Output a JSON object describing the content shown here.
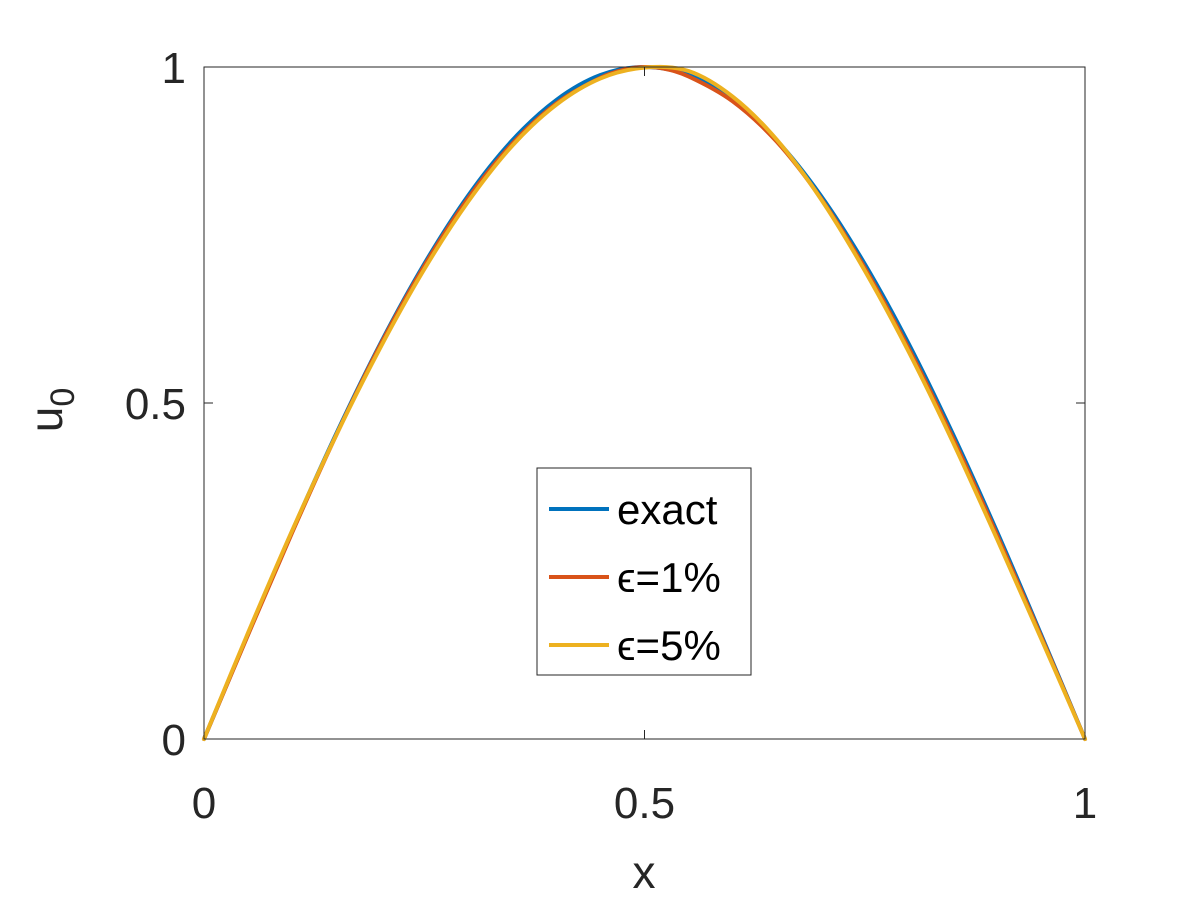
{
  "chart_data": {
    "type": "line",
    "xlabel": "x",
    "ylabel": "u",
    "ylabel_subscript": "0",
    "xlim": [
      0,
      1
    ],
    "ylim": [
      0,
      1
    ],
    "xticks": [
      0,
      0.5,
      1
    ],
    "xtick_labels": [
      "0",
      "0.5",
      "1"
    ],
    "yticks": [
      0,
      0.5,
      1
    ],
    "ytick_labels": [
      "0",
      "0.5",
      "1"
    ],
    "grid": false,
    "box": true,
    "legend_position": "center-bottom",
    "series": [
      {
        "name": "exact",
        "color": "#0072BD",
        "x": [
          0,
          0.05,
          0.1,
          0.15,
          0.2,
          0.25,
          0.3,
          0.35,
          0.4,
          0.45,
          0.5,
          0.55,
          0.6,
          0.65,
          0.7,
          0.75,
          0.8,
          0.85,
          0.9,
          0.95,
          1
        ],
        "y": [
          0,
          0.156,
          0.309,
          0.454,
          0.588,
          0.707,
          0.809,
          0.891,
          0.951,
          0.988,
          1,
          0.988,
          0.951,
          0.891,
          0.809,
          0.707,
          0.588,
          0.454,
          0.309,
          0.156,
          0
        ]
      },
      {
        "name": "ϵ=1%",
        "color": "#D95319",
        "x": [
          0,
          0.05,
          0.1,
          0.15,
          0.2,
          0.25,
          0.3,
          0.35,
          0.4,
          0.45,
          0.48,
          0.5,
          0.52,
          0.55,
          0.6,
          0.65,
          0.7,
          0.75,
          0.8,
          0.85,
          0.9,
          0.95,
          1
        ],
        "y": [
          0,
          0.155,
          0.307,
          0.452,
          0.586,
          0.704,
          0.805,
          0.886,
          0.946,
          0.984,
          0.997,
          1,
          0.998,
          0.986,
          0.949,
          0.889,
          0.805,
          0.701,
          0.581,
          0.448,
          0.304,
          0.153,
          0
        ]
      },
      {
        "name": "ϵ=5%",
        "color": "#EDB120",
        "x": [
          0,
          0.05,
          0.1,
          0.15,
          0.2,
          0.25,
          0.3,
          0.35,
          0.4,
          0.45,
          0.5,
          0.55,
          0.6,
          0.65,
          0.7,
          0.75,
          0.8,
          0.85,
          0.9,
          0.95,
          1
        ],
        "y": [
          0,
          0.158,
          0.31,
          0.452,
          0.582,
          0.699,
          0.8,
          0.883,
          0.944,
          0.983,
          0.999,
          0.994,
          0.956,
          0.892,
          0.804,
          0.697,
          0.576,
          0.442,
          0.298,
          0.15,
          0
        ]
      }
    ]
  }
}
